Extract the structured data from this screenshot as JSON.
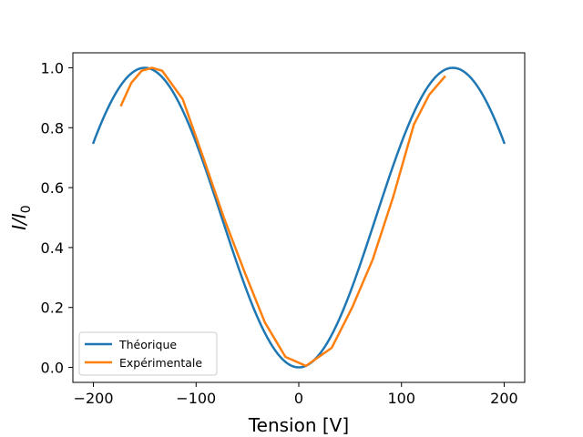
{
  "chart_data": {
    "type": "line",
    "xlabel": "Tension [V]",
    "ylabel_main": "I/I",
    "ylabel_sub": "0",
    "xlim": [
      -220,
      220
    ],
    "ylim": [
      -0.05,
      1.05
    ],
    "xticks": [
      -200,
      -100,
      0,
      100,
      200
    ],
    "xtick_labels": [
      "−200",
      "−100",
      "0",
      "100",
      "200"
    ],
    "yticks": [
      0.0,
      0.2,
      0.4,
      0.6,
      0.8,
      1.0
    ],
    "ytick_labels": [
      "0.0",
      "0.2",
      "0.4",
      "0.6",
      "0.8",
      "1.0"
    ],
    "legend_position": "lower-left",
    "grid": false,
    "series": [
      {
        "name": "Théorique",
        "color": "#1f77b4",
        "style": "sin2_theory",
        "x_range": [
          -200,
          200
        ],
        "peak_x": 150
      },
      {
        "name": "Expérimentale",
        "color": "#ff7f0e",
        "x": [
          -173,
          -163,
          -153,
          -143,
          -133,
          -113,
          -93,
          -73,
          -53,
          -33,
          -13,
          7,
          32,
          52,
          72,
          92,
          112,
          127,
          142
        ],
        "y": [
          0.875,
          0.95,
          0.99,
          1.0,
          0.99,
          0.895,
          0.7,
          0.5,
          0.32,
          0.15,
          0.035,
          0.005,
          0.065,
          0.2,
          0.36,
          0.57,
          0.81,
          0.91,
          0.97
        ]
      }
    ]
  }
}
